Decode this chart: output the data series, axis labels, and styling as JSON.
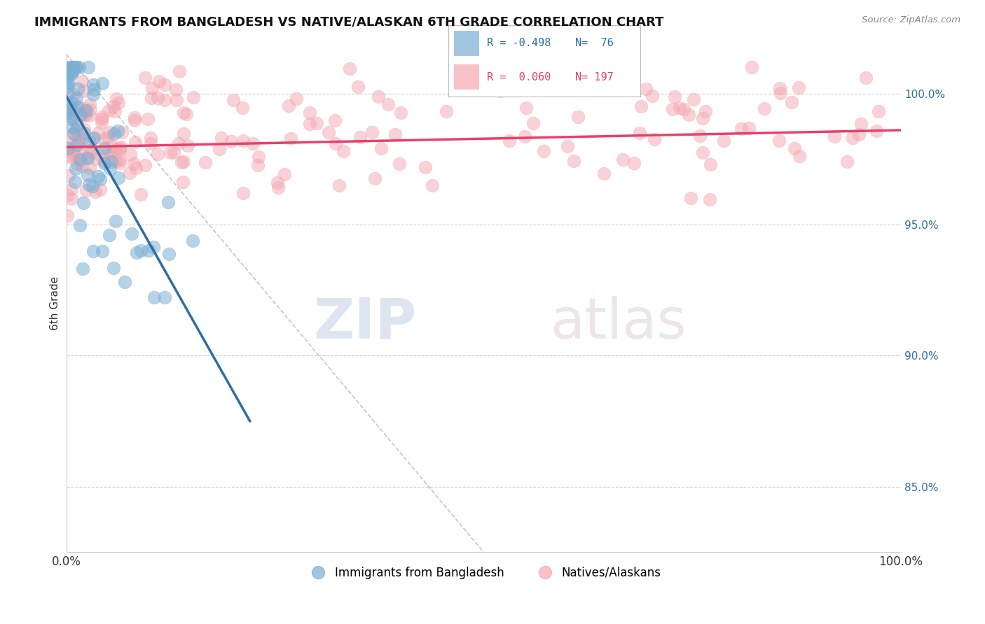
{
  "title": "IMMIGRANTS FROM BANGLADESH VS NATIVE/ALASKAN 6TH GRADE CORRELATION CHART",
  "source": "Source: ZipAtlas.com",
  "ylabel": "6th Grade",
  "xlim": [
    0.0,
    100.0
  ],
  "ylim": [
    82.5,
    101.5
  ],
  "xtick_labels": [
    "0.0%",
    "100.0%"
  ],
  "ytick_positions": [
    85.0,
    90.0,
    95.0,
    100.0
  ],
  "right_ytick_labels": [
    "85.0%",
    "90.0%",
    "95.0%",
    "100.0%"
  ],
  "blue_color": "#7BAFD4",
  "pink_color": "#F4A7B0",
  "blue_line_color": "#2E6DA4",
  "pink_line_color": "#E8406A",
  "blue_scatter_seed": 42,
  "pink_scatter_seed": 99,
  "blue_trendline": {
    "x_start": 0.0,
    "y_start": 99.9,
    "x_end": 22.0,
    "y_end": 87.5
  },
  "pink_trendline": {
    "x_start": 0.0,
    "y_start": 97.95,
    "x_end": 100.0,
    "y_end": 98.6
  },
  "diagonal_line": {
    "x_start": 0.0,
    "y_start": 101.5,
    "x_end": 50.0,
    "y_end": 82.5
  },
  "watermark_zip": "ZIP",
  "watermark_atlas": "atlas",
  "background_color": "#ffffff",
  "grid_color": "#d0d0d0"
}
